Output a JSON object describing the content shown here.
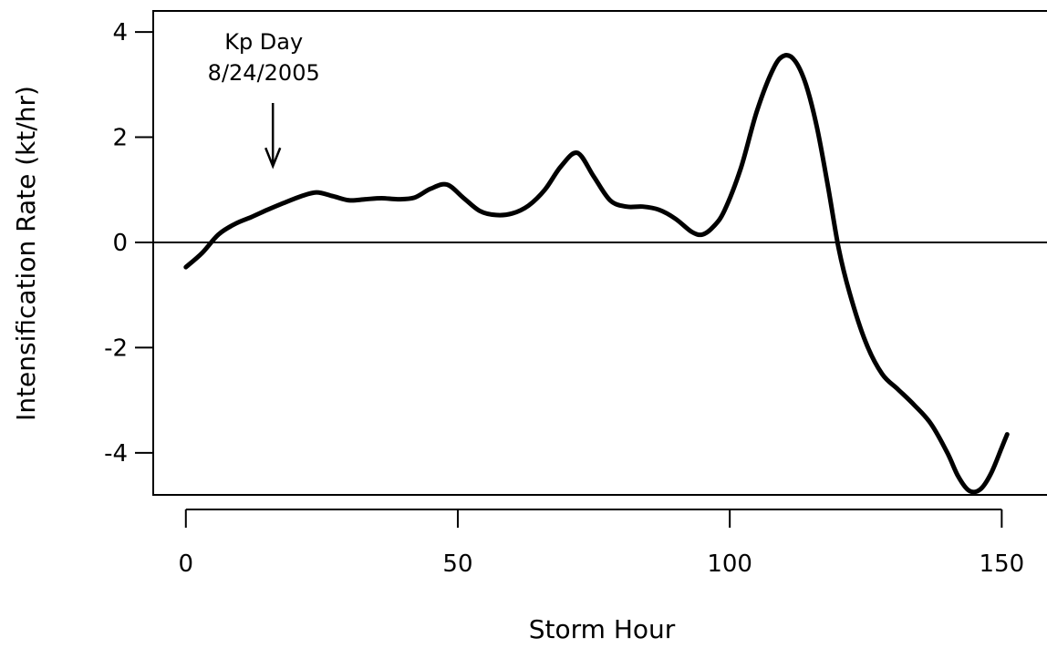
{
  "chart_data": {
    "type": "line",
    "title": "",
    "xlabel": "Storm Hour",
    "ylabel": "Intensification Rate (kt/hr)",
    "xlim": [
      -6,
      160
    ],
    "ylim": [
      -4.8,
      4.4
    ],
    "x_ticks": [
      0,
      50,
      100,
      150
    ],
    "x_tick_labels": [
      "0",
      "50",
      "100",
      "150"
    ],
    "y_ticks": [
      4,
      2,
      0,
      -2,
      -4
    ],
    "y_tick_labels": [
      "4",
      "2",
      "0",
      "-2",
      "-4"
    ],
    "grid": false,
    "reference_line_y": 0,
    "annotation": {
      "lines": [
        "Kp Day",
        "8/24/2005"
      ],
      "x": 16,
      "arrow_from_y": 2.65,
      "arrow_to_y": 1.45
    },
    "series": [
      {
        "color": "#000000",
        "x": [
          0,
          3,
          6,
          9,
          12,
          15,
          18,
          21,
          24,
          27,
          30,
          33,
          36,
          39,
          42,
          45,
          48,
          51,
          54,
          57,
          60,
          63,
          66,
          69,
          72,
          75,
          78,
          81,
          84,
          87,
          90,
          93,
          95,
          97,
          99,
          102,
          105,
          108,
          110,
          112,
          114,
          116,
          118,
          120,
          122,
          125,
          128,
          131,
          134,
          137,
          140,
          142,
          144,
          146,
          148,
          150,
          151
        ],
        "y": [
          -0.47,
          -0.2,
          0.15,
          0.35,
          0.48,
          0.62,
          0.75,
          0.87,
          0.95,
          0.88,
          0.8,
          0.82,
          0.84,
          0.82,
          0.85,
          1.02,
          1.1,
          0.85,
          0.6,
          0.52,
          0.55,
          0.7,
          1.0,
          1.45,
          1.7,
          1.25,
          0.8,
          0.68,
          0.68,
          0.62,
          0.45,
          0.2,
          0.15,
          0.3,
          0.6,
          1.4,
          2.5,
          3.3,
          3.55,
          3.45,
          3.0,
          2.2,
          1.1,
          -0.1,
          -0.95,
          -1.9,
          -2.5,
          -2.8,
          -3.1,
          -3.45,
          -4.0,
          -4.45,
          -4.72,
          -4.7,
          -4.4,
          -3.9,
          -3.65
        ]
      }
    ]
  }
}
